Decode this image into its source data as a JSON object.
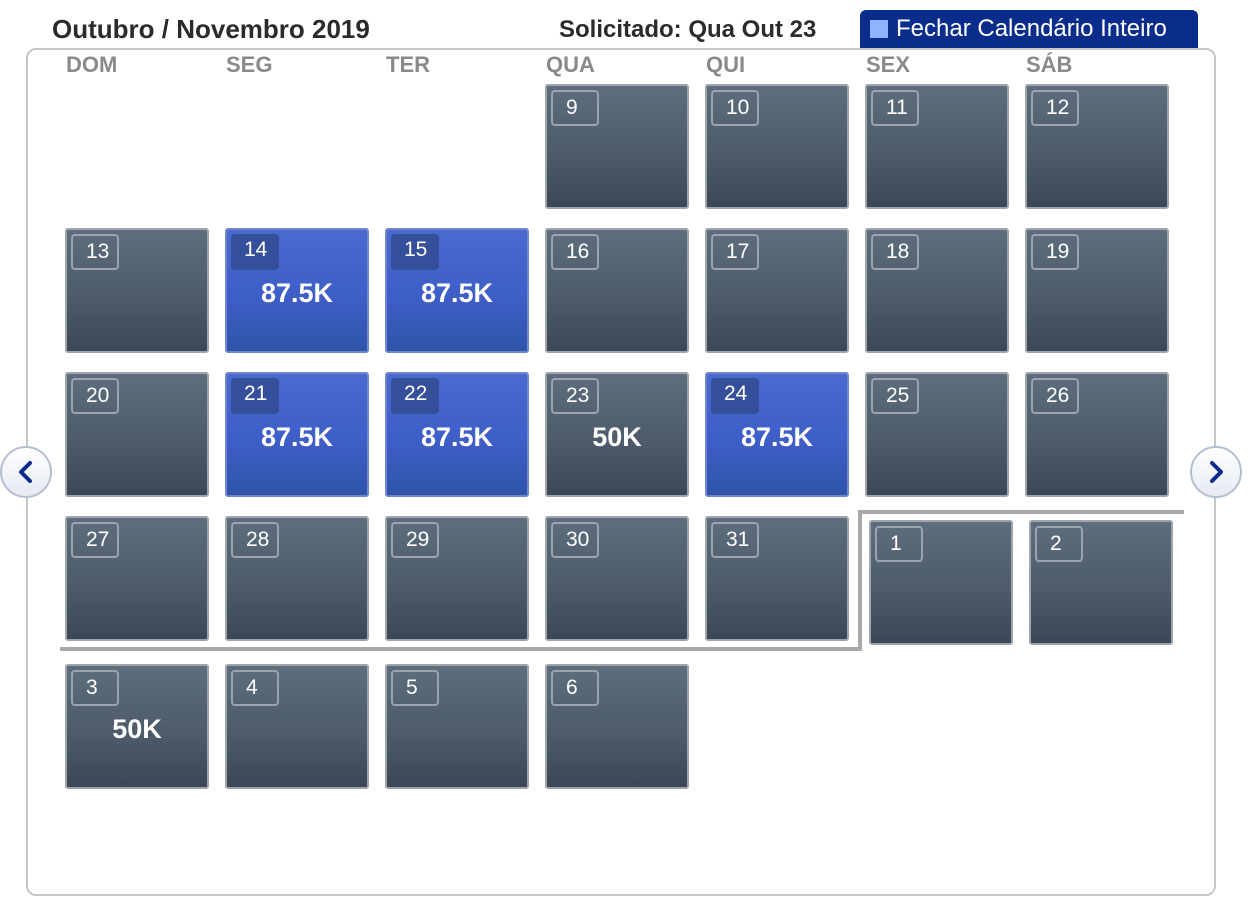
{
  "header": {
    "title": "Outubro / Novembro 2019",
    "requested": "Solicitado: Qua Out 23",
    "close_calendar_label": "Fechar Calendário Inteiro"
  },
  "weekdays": [
    "DOM",
    "SEG",
    "TER",
    "QUA",
    "QUI",
    "SEX",
    "SÁB"
  ],
  "days": [
    {
      "day": "9",
      "price": "",
      "available": false
    },
    {
      "day": "10",
      "price": "",
      "available": false
    },
    {
      "day": "11",
      "price": "",
      "available": false
    },
    {
      "day": "12",
      "price": "",
      "available": false
    },
    {
      "day": "13",
      "price": "",
      "available": false
    },
    {
      "day": "14",
      "price": "87.5K",
      "available": true
    },
    {
      "day": "15",
      "price": "87.5K",
      "available": true
    },
    {
      "day": "16",
      "price": "",
      "available": false
    },
    {
      "day": "17",
      "price": "",
      "available": false
    },
    {
      "day": "18",
      "price": "",
      "available": false
    },
    {
      "day": "19",
      "price": "",
      "available": false
    },
    {
      "day": "20",
      "price": "",
      "available": false
    },
    {
      "day": "21",
      "price": "87.5K",
      "available": true
    },
    {
      "day": "22",
      "price": "87.5K",
      "available": true
    },
    {
      "day": "23",
      "price": "50K",
      "available": false
    },
    {
      "day": "24",
      "price": "87.5K",
      "available": true
    },
    {
      "day": "25",
      "price": "",
      "available": false
    },
    {
      "day": "26",
      "price": "",
      "available": false
    },
    {
      "day": "27",
      "price": "",
      "available": false
    },
    {
      "day": "28",
      "price": "",
      "available": false
    },
    {
      "day": "29",
      "price": "",
      "available": false
    },
    {
      "day": "30",
      "price": "",
      "available": false
    },
    {
      "day": "31",
      "price": "",
      "available": false
    },
    {
      "day": "1",
      "price": "",
      "available": false
    },
    {
      "day": "2",
      "price": "",
      "available": false
    },
    {
      "day": "3",
      "price": "50K",
      "available": false
    },
    {
      "day": "4",
      "price": "",
      "available": false
    },
    {
      "day": "5",
      "price": "",
      "available": false
    },
    {
      "day": "6",
      "price": "",
      "available": false
    }
  ],
  "icons": {
    "prev": "chevron-left-icon",
    "next": "chevron-right-icon",
    "grid": "calendar-grid-icon"
  },
  "colors": {
    "available": "#3e5ec8",
    "unavailable": "#4d5b6b",
    "header_button": "#0a2d8c"
  }
}
